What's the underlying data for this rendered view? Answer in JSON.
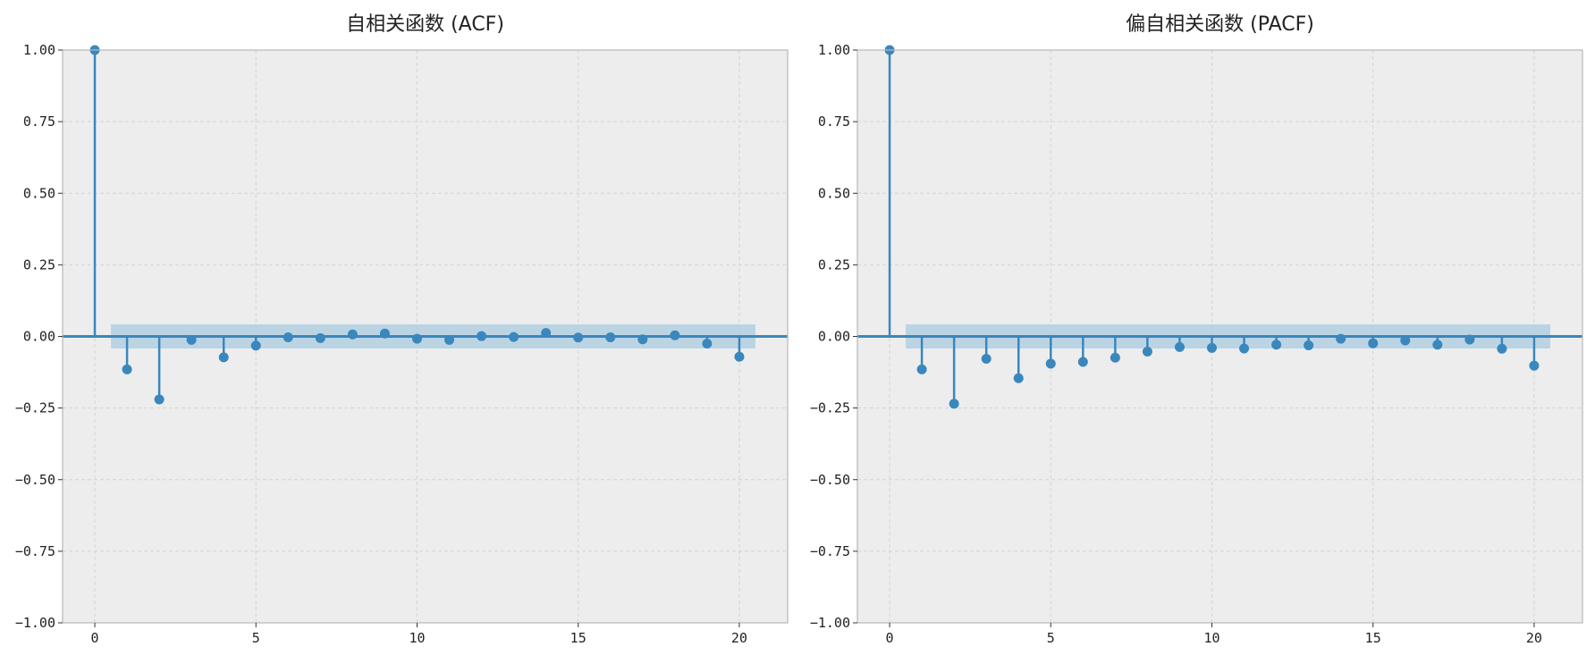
{
  "chart_data": [
    {
      "type": "stem",
      "title": "自相关函数 (ACF)",
      "xlabel": "",
      "ylabel": "",
      "xlim": [
        -1,
        21.5
      ],
      "ylim": [
        -1.0,
        1.0
      ],
      "grid": true,
      "confidence_band": [
        -0.042,
        0.042
      ],
      "xticks": [
        0,
        5,
        10,
        15,
        20
      ],
      "yticks": [
        1.0,
        0.75,
        0.5,
        0.25,
        0.0,
        -0.25,
        -0.5,
        -0.75,
        -1.0
      ],
      "xtick_labels": [
        "0",
        "5",
        "10",
        "15",
        "20"
      ],
      "ytick_labels": [
        "1.00",
        "0.75",
        "0.50",
        "0.25",
        "0.00",
        "−0.25",
        "−0.50",
        "−0.75",
        "−1.00"
      ],
      "lags": [
        0,
        1,
        2,
        3,
        4,
        5,
        6,
        7,
        8,
        9,
        10,
        11,
        12,
        13,
        14,
        15,
        16,
        17,
        18,
        19,
        20
      ],
      "values": [
        1.0,
        -0.115,
        -0.22,
        -0.012,
        -0.073,
        -0.032,
        -0.003,
        -0.006,
        0.007,
        0.01,
        -0.008,
        -0.012,
        0.001,
        -0.002,
        0.012,
        -0.004,
        -0.003,
        -0.01,
        0.004,
        -0.025,
        -0.071
      ],
      "color": "#3a87bd",
      "band_color": "#aecde1"
    },
    {
      "type": "stem",
      "title": "偏自相关函数 (PACF)",
      "xlabel": "",
      "ylabel": "",
      "xlim": [
        -1,
        21.5
      ],
      "ylim": [
        -1.0,
        1.0
      ],
      "grid": true,
      "confidence_band": [
        -0.042,
        0.042
      ],
      "xticks": [
        0,
        5,
        10,
        15,
        20
      ],
      "yticks": [
        1.0,
        0.75,
        0.5,
        0.25,
        0.0,
        -0.25,
        -0.5,
        -0.75,
        -1.0
      ],
      "xtick_labels": [
        "0",
        "5",
        "10",
        "15",
        "20"
      ],
      "ytick_labels": [
        "1.00",
        "0.75",
        "0.50",
        "0.25",
        "0.00",
        "−0.25",
        "−0.50",
        "−0.75",
        "−1.00"
      ],
      "lags": [
        0,
        1,
        2,
        3,
        4,
        5,
        6,
        7,
        8,
        9,
        10,
        11,
        12,
        13,
        14,
        15,
        16,
        17,
        18,
        19,
        20
      ],
      "values": [
        1.0,
        -0.115,
        -0.235,
        -0.078,
        -0.146,
        -0.095,
        -0.089,
        -0.074,
        -0.053,
        -0.037,
        -0.04,
        -0.042,
        -0.029,
        -0.031,
        -0.008,
        -0.024,
        -0.014,
        -0.029,
        -0.011,
        -0.043,
        -0.102
      ],
      "color": "#3a87bd",
      "band_color": "#aecde1"
    }
  ],
  "style": {
    "axes_bg": "#ededed",
    "grid_color": "#d4d4d4",
    "spine_color": "#b8b8b8"
  }
}
